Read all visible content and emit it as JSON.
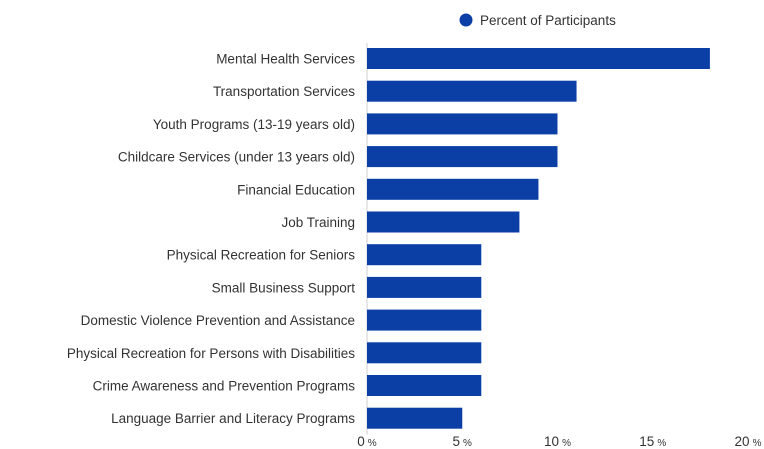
{
  "chart_data": {
    "type": "bar",
    "orientation": "horizontal",
    "categories": [
      "Mental Health Services",
      "Transportation Services",
      "Youth Programs (13-19 years old)",
      "Childcare Services (under 13 years old)",
      "Financial Education",
      "Job Training",
      "Physical Recreation for Seniors",
      "Small Business Support",
      "Domestic Violence Prevention and Assistance",
      "Physical Recreation for Persons with Disabilities",
      "Crime Awareness and Prevention Programs",
      "Language Barrier and Literacy Programs"
    ],
    "series": [
      {
        "name": "Percent of Participants",
        "color": "#0b3fa6",
        "values": [
          18,
          11,
          10,
          10,
          9,
          8,
          6,
          6,
          6,
          6,
          6,
          5
        ]
      }
    ],
    "xlim": [
      0,
      20
    ],
    "xticks": [
      0,
      5,
      10,
      15,
      20
    ],
    "tick_unit": "%",
    "grid": false,
    "legend_position": "top-right"
  }
}
